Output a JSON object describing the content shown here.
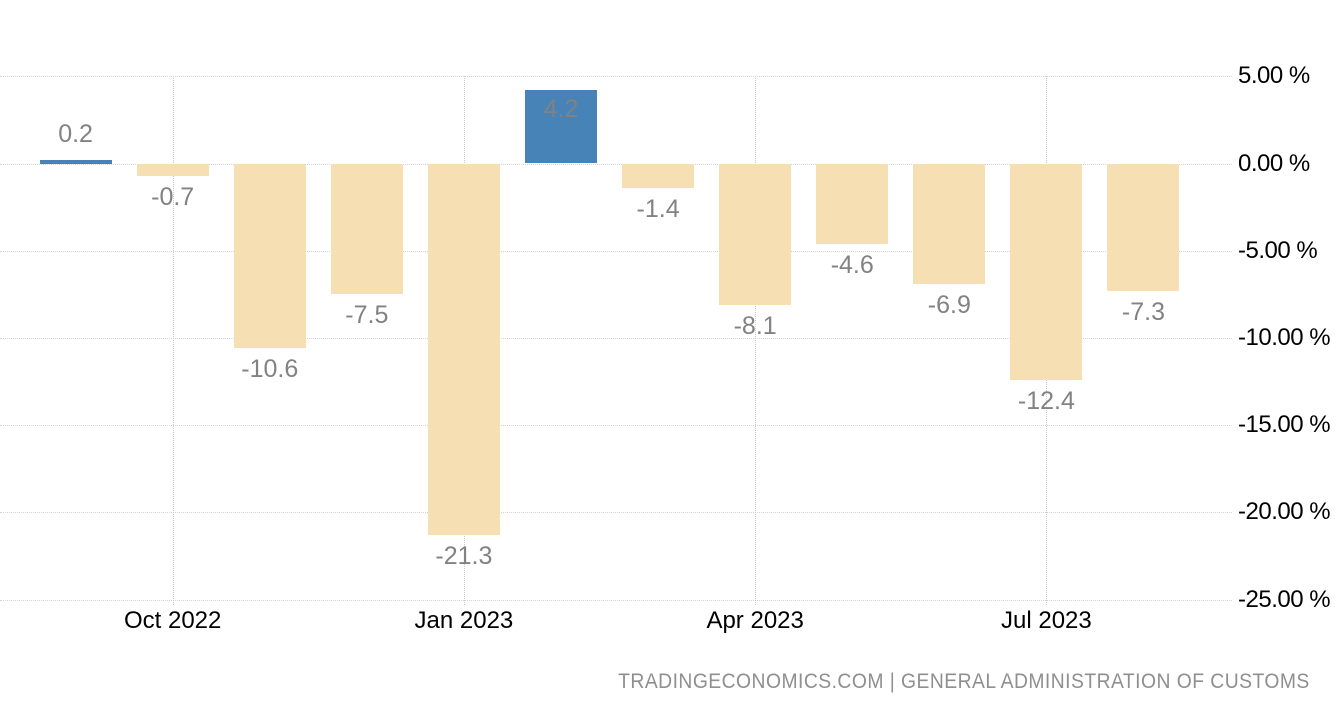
{
  "chart_data": {
    "type": "bar",
    "title": "",
    "unit": "%",
    "bars": [
      {
        "label": "0.2",
        "value": 0.2
      },
      {
        "label": "-0.7",
        "value": -0.7
      },
      {
        "label": "-10.6",
        "value": -10.6
      },
      {
        "label": "-7.5",
        "value": -7.5
      },
      {
        "label": "-21.3",
        "value": -21.3
      },
      {
        "label": "4.2",
        "value": 4.2
      },
      {
        "label": "-1.4",
        "value": -1.4
      },
      {
        "label": "-8.1",
        "value": -8.1
      },
      {
        "label": "-4.6",
        "value": -4.6
      },
      {
        "label": "-6.9",
        "value": -6.9
      },
      {
        "label": "-12.4",
        "value": -12.4
      },
      {
        "label": "-7.3",
        "value": -7.3
      }
    ],
    "x_ticks": [
      {
        "label": "Oct 2022",
        "bar_index": 1
      },
      {
        "label": "Jan 2023",
        "bar_index": 4
      },
      {
        "label": "Apr 2023",
        "bar_index": 7
      },
      {
        "label": "Jul 2023",
        "bar_index": 10
      }
    ],
    "y_ticks": [
      "5.00 %",
      "0.00 %",
      "-5.00 %",
      "-10.00 %",
      "-15.00 %",
      "-20.00 %",
      "-25.00 %"
    ],
    "ylim": [
      -25,
      5
    ],
    "grid": "dotted",
    "legend": "none",
    "colors": {
      "positive_bar": "#4783B7",
      "negative_bar": "#F5DFB3",
      "gridline": "#D4D4D4",
      "data_label": "#828282",
      "axis_label": "#000000",
      "attribution": "#8F8F8F"
    }
  },
  "attribution": {
    "text": "TRADINGECONOMICS.COM | GENERAL ADMINISTRATION OF CUSTOMS"
  }
}
